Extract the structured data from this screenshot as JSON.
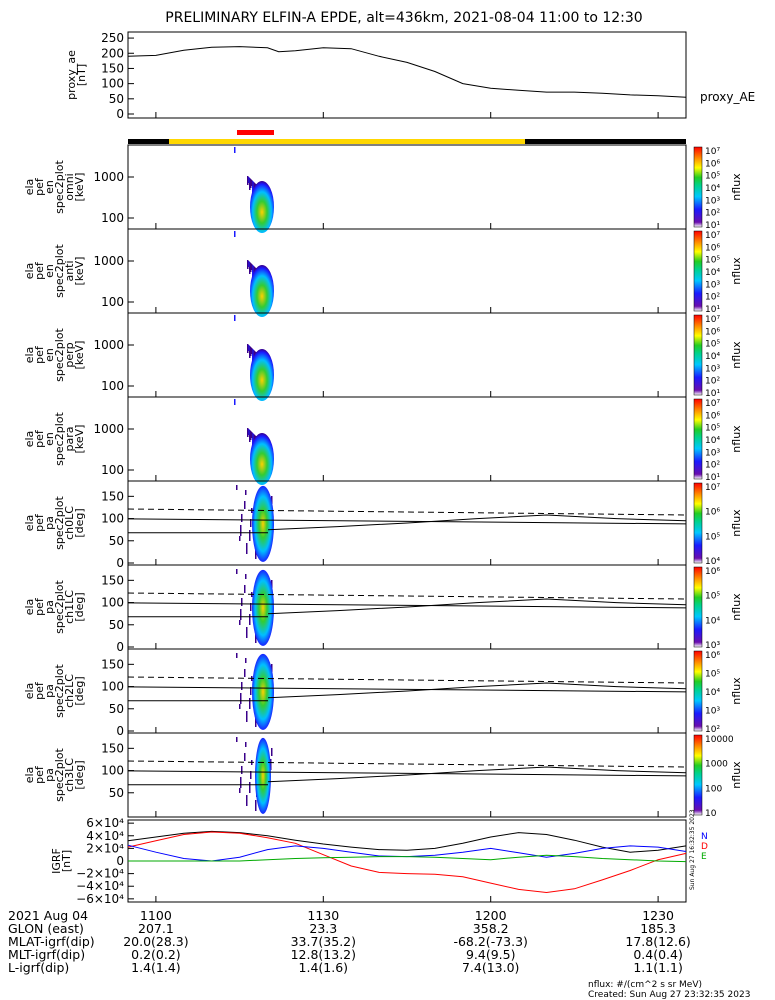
{
  "title": "PRELIMINARY ELFIN-A EPDE, alt=436km, 2021-08-04 11:00 to 12:30",
  "ae_panel": {
    "ylabel_lines": [
      "proxy_ae",
      "[nT]"
    ],
    "yticks": [
      "250",
      "200",
      "150",
      "100",
      "50",
      "0"
    ],
    "ylim": [
      0,
      270
    ],
    "legend": "proxy_AE"
  },
  "spec_panels": [
    {
      "ylabel_lines": [
        "ela",
        "pef",
        "en",
        "spec2plot",
        "omni",
        "[keV]"
      ],
      "yticks": [
        "1000",
        "100"
      ],
      "cbar": [
        "10⁷",
        "10⁶",
        "10⁵",
        "10⁴",
        "10³",
        "10²",
        "10¹"
      ],
      "cbar_label": "nflux"
    },
    {
      "ylabel_lines": [
        "ela",
        "pef",
        "en",
        "spec2plot",
        "anti",
        "[keV]"
      ],
      "yticks": [
        "1000",
        "100"
      ],
      "cbar": [
        "10⁷",
        "10⁶",
        "10⁵",
        "10⁴",
        "10³",
        "10²",
        "10¹"
      ],
      "cbar_label": "nflux"
    },
    {
      "ylabel_lines": [
        "ela",
        "pef",
        "en",
        "spec2plot",
        "perp",
        "[keV]"
      ],
      "yticks": [
        "1000",
        "100"
      ],
      "cbar": [
        "10⁷",
        "10⁶",
        "10⁵",
        "10⁴",
        "10³",
        "10²",
        "10¹"
      ],
      "cbar_label": "nflux"
    },
    {
      "ylabel_lines": [
        "ela",
        "pef",
        "en",
        "spec2plot",
        "para",
        "[keV]"
      ],
      "yticks": [
        "1000",
        "100"
      ],
      "cbar": [
        "10⁷",
        "10⁶",
        "10⁵",
        "10⁴",
        "10³",
        "10²",
        "10¹"
      ],
      "cbar_label": "nflux"
    }
  ],
  "pa_panels": [
    {
      "ylabel_lines": [
        "ela",
        "pef",
        "pa",
        "spec2plot",
        "ch0LC",
        "[deg]"
      ],
      "yticks": [
        "150",
        "100",
        "50",
        "0"
      ],
      "cbar": [
        "10⁷",
        "10⁶",
        "10⁵",
        "10⁴"
      ],
      "cbar_label": "nflux"
    },
    {
      "ylabel_lines": [
        "ela",
        "pef",
        "pa",
        "spec2plot",
        "ch1LC",
        "[deg]"
      ],
      "yticks": [
        "150",
        "100",
        "50",
        "0"
      ],
      "cbar": [
        "10⁶",
        "10⁵",
        "10⁴",
        "10³"
      ],
      "cbar_label": "nflux"
    },
    {
      "ylabel_lines": [
        "ela",
        "pef",
        "pa",
        "spec2plot",
        "ch2LC",
        "[deg]"
      ],
      "yticks": [
        "150",
        "100",
        "50",
        "0"
      ],
      "cbar": [
        "10⁶",
        "10⁵",
        "10⁴",
        "10³",
        "10²"
      ],
      "cbar_label": "nflux"
    },
    {
      "ylabel_lines": [
        "ela",
        "pef",
        "pa",
        "spec2plot",
        "ch3LC",
        "[deg]"
      ],
      "yticks": [
        "150",
        "100",
        "50"
      ],
      "cbar": [
        "10000",
        "1000",
        "100",
        "10"
      ],
      "cbar_label": "nflux"
    }
  ],
  "igrf_panel": {
    "ylabel_lines": [
      "IGRF",
      "[nT]"
    ],
    "yticks": [
      "6×10⁴",
      "4×10⁴",
      "2×10⁴",
      "0",
      "−2×10⁴",
      "−4×10⁴",
      "−6×10⁴"
    ],
    "legend": [
      "N",
      "D",
      "E"
    ],
    "timestamp": "Sun Aug 27 16:32:35 2023"
  },
  "footer": {
    "row_labels": [
      "2021 Aug 04",
      "GLON (east)",
      "MLAT-igrf(dip)",
      "MLT-igrf(dip)",
      "L-igrf(dip)"
    ],
    "columns": [
      {
        "time": "1100",
        "values": [
          "207.1",
          "20.0(28.3)",
          "0.2(0.2)",
          "1.4(1.4)"
        ]
      },
      {
        "time": "1130",
        "values": [
          "23.3",
          "33.7(35.2)",
          "12.8(13.2)",
          "1.4(1.6)"
        ]
      },
      {
        "time": "1200",
        "values": [
          "358.2",
          "-68.2(-73.3)",
          "9.4(9.5)",
          "7.4(13.0)"
        ]
      },
      {
        "time": "1230",
        "values": [
          "185.3",
          "17.8(12.6)",
          "0.4(0.4)",
          "1.1(1.1)"
        ]
      }
    ],
    "units_note": "nflux: #/(cm^2 s sr MeV)",
    "created": "Created: Sun Aug 27 23:32:35 2023"
  },
  "chart_data": {
    "type": "line",
    "title": "PRELIMINARY ELFIN-A EPDE, alt=436km, 2021-08-04 11:00 to 12:30",
    "x_ticks": [
      "1100",
      "1130",
      "1200",
      "1230"
    ],
    "x_minutes": [
      0,
      30,
      60,
      90
    ],
    "xlim_minutes": [
      -5,
      95
    ],
    "series": [
      {
        "name": "proxy_AE",
        "x": [
          -5,
          0,
          5,
          10,
          15,
          20,
          22,
          25,
          30,
          35,
          40,
          45,
          50,
          55,
          60,
          65,
          70,
          75,
          80,
          85,
          90,
          95
        ],
        "y": [
          190,
          193,
          210,
          220,
          222,
          218,
          205,
          208,
          218,
          215,
          190,
          170,
          140,
          100,
          85,
          78,
          72,
          72,
          68,
          63,
          60,
          55
        ]
      },
      {
        "name": "N",
        "x": [
          -5,
          0,
          5,
          10,
          15,
          20,
          25,
          30,
          35,
          40,
          45,
          50,
          55,
          60,
          65,
          70,
          75,
          80,
          85,
          90,
          95
        ],
        "y": [
          32000,
          38000,
          44000,
          47000,
          45000,
          40000,
          33000,
          27000,
          22000,
          18000,
          17000,
          20000,
          28000,
          38000,
          45000,
          42000,
          33000,
          22000,
          14000,
          17000,
          24000
        ]
      },
      {
        "name": "D",
        "x": [
          -5,
          0,
          5,
          10,
          15,
          20,
          25,
          30,
          35,
          40,
          45,
          50,
          55,
          60,
          65,
          70,
          75,
          80,
          85,
          90,
          95
        ],
        "y": [
          22000,
          32000,
          42000,
          46000,
          44000,
          37000,
          28000,
          10000,
          -8000,
          -18000,
          -20000,
          -21000,
          -25000,
          -35000,
          -45000,
          -50000,
          -44000,
          -30000,
          -15000,
          2000,
          12000
        ]
      },
      {
        "name": "E",
        "x": [
          -5,
          0,
          5,
          10,
          15,
          20,
          25,
          30,
          35,
          40,
          45,
          50,
          55,
          60,
          65,
          70,
          75,
          80,
          85,
          90,
          95
        ],
        "y": [
          25000,
          14000,
          4000,
          0,
          6000,
          18000,
          24000,
          20000,
          14000,
          8000,
          7000,
          9000,
          14000,
          20000,
          13000,
          6000,
          12000,
          20000,
          24000,
          22000,
          15000
        ]
      },
      {
        "name": "E (green)",
        "x": [
          -5,
          0,
          5,
          10,
          15,
          20,
          25,
          30,
          35,
          40,
          45,
          50,
          55,
          60,
          65,
          70,
          75,
          80,
          85,
          90,
          95
        ],
        "y": [
          0,
          0,
          0,
          0,
          0,
          2000,
          4000,
          5000,
          6000,
          7000,
          7000,
          6000,
          4000,
          2000,
          6000,
          9000,
          7000,
          4000,
          2000,
          0,
          -1000
        ]
      }
    ],
    "igrf_ylim": [
      -65000,
      65000
    ],
    "pa_guides": {
      "loss_cone_start": [
        75,
        82,
        90,
        100,
        108,
        100,
        95
      ],
      "dashed_level": 108,
      "solid_level": 88
    }
  }
}
